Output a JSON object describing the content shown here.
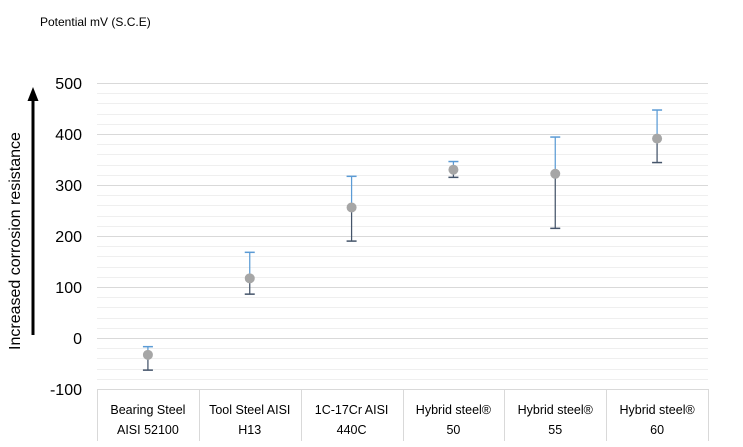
{
  "chart_data": {
    "type": "scatter",
    "unit_label": "Potential mV (S.C.E)",
    "title": "",
    "xlabel": "",
    "ylabel": "Increased corrosion resistance",
    "ylim": [
      -100,
      500
    ],
    "yticks": [
      "-100",
      "0",
      "100",
      "200",
      "300",
      "400",
      "500"
    ],
    "grid": true,
    "legend": "none",
    "categories": [
      [
        "Bearing Steel",
        "AISI 52100"
      ],
      [
        "Tool Steel AISI",
        "H13"
      ],
      [
        "1C-17Cr AISI",
        "440C"
      ],
      [
        "Hybrid steel®",
        "50"
      ],
      [
        "Hybrid steel®",
        "55"
      ],
      [
        "Hybrid steel®",
        "60"
      ]
    ],
    "series": [
      {
        "values": [
          -33,
          117,
          256,
          330,
          322,
          391
        ],
        "error_high": [
          -17,
          168,
          317,
          346,
          394,
          447
        ],
        "error_low": [
          -63,
          86,
          190,
          315,
          215,
          344
        ]
      }
    ],
    "colors": {
      "marker": "#a6a6a6",
      "error_upper": "#5b9bd5",
      "error_lower": "#44546a",
      "arrow": "#000000"
    }
  }
}
